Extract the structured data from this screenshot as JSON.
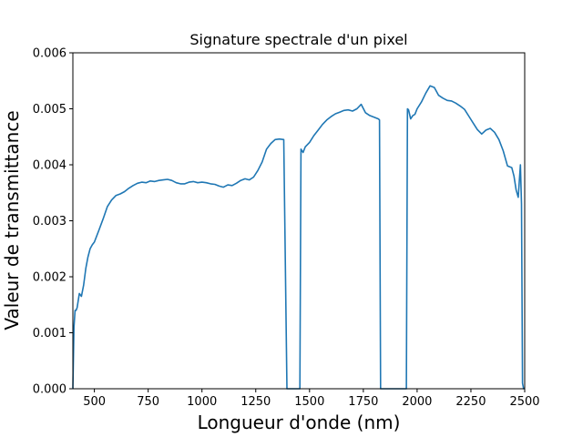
{
  "chart_data": {
    "type": "line",
    "title": "Signature spectrale d'un pixel",
    "xlabel": "Longueur d'onde (nm)",
    "ylabel": "Valeur de transmittance",
    "xlim": [
      400,
      2500
    ],
    "ylim": [
      0,
      0.006
    ],
    "xticks": [
      500,
      750,
      1000,
      1250,
      1500,
      1750,
      2000,
      2250,
      2500
    ],
    "yticks": [
      0,
      0.001,
      0.002,
      0.003,
      0.004,
      0.005,
      0.006
    ],
    "xtick_labels": [
      "500",
      "750",
      "1000",
      "1250",
      "1500",
      "1750",
      "2000",
      "2250",
      "2500"
    ],
    "ytick_labels": [
      "0.000",
      "0.001",
      "0.002",
      "0.003",
      "0.004",
      "0.005",
      "0.006"
    ],
    "grid": false,
    "line_color": "#1f77b4",
    "series": [
      {
        "x": [
          400,
          405,
          410,
          415,
          420,
          430,
          440,
          450,
          460,
          470,
          480,
          490,
          500,
          520,
          540,
          560,
          580,
          600,
          620,
          640,
          660,
          680,
          700,
          720,
          740,
          760,
          780,
          800,
          820,
          840,
          860,
          880,
          900,
          920,
          940,
          960,
          980,
          1000,
          1020,
          1040,
          1060,
          1080,
          1100,
          1120,
          1140,
          1160,
          1180,
          1200,
          1220,
          1240,
          1260,
          1280,
          1300,
          1320,
          1340,
          1360,
          1380,
          1395,
          1400,
          1455,
          1460,
          1470,
          1480,
          1500,
          1520,
          1540,
          1560,
          1580,
          1600,
          1620,
          1640,
          1660,
          1680,
          1700,
          1720,
          1740,
          1760,
          1780,
          1800,
          1820,
          1825,
          1830,
          1950,
          1955,
          1960,
          1970,
          1980,
          1990,
          2000,
          2020,
          2040,
          2060,
          2080,
          2100,
          2120,
          2140,
          2160,
          2180,
          2200,
          2220,
          2240,
          2260,
          2280,
          2300,
          2320,
          2340,
          2360,
          2380,
          2400,
          2420,
          2440,
          2450,
          2460,
          2470,
          2480,
          2485,
          2490,
          2495,
          2500
        ],
        "y": [
          0,
          0.0011,
          0.0014,
          0.0014,
          0.00145,
          0.0017,
          0.00165,
          0.00185,
          0.00215,
          0.00235,
          0.0025,
          0.00257,
          0.00262,
          0.00282,
          0.00303,
          0.00325,
          0.00337,
          0.00345,
          0.00348,
          0.00352,
          0.00358,
          0.00363,
          0.00367,
          0.00369,
          0.00368,
          0.00371,
          0.0037,
          0.00372,
          0.00373,
          0.00374,
          0.00372,
          0.00368,
          0.00366,
          0.00366,
          0.00369,
          0.0037,
          0.00368,
          0.00369,
          0.00368,
          0.00366,
          0.00365,
          0.00362,
          0.0036,
          0.00364,
          0.00363,
          0.00367,
          0.00372,
          0.00375,
          0.00373,
          0.00378,
          0.0039,
          0.00405,
          0.00428,
          0.00438,
          0.00445,
          0.00446,
          0.00445,
          0.0,
          0.0,
          0.0,
          0.00428,
          0.00422,
          0.00432,
          0.0044,
          0.00452,
          0.00462,
          0.00472,
          0.0048,
          0.00486,
          0.00491,
          0.00494,
          0.00497,
          0.00498,
          0.00496,
          0.005,
          0.00508,
          0.00493,
          0.00488,
          0.00485,
          0.00482,
          0.0048,
          0.0,
          0.0,
          0.005,
          0.00498,
          0.00482,
          0.00488,
          0.0049,
          0.005,
          0.00512,
          0.00528,
          0.00541,
          0.00538,
          0.00524,
          0.00519,
          0.00515,
          0.00514,
          0.0051,
          0.00505,
          0.00499,
          0.00487,
          0.00475,
          0.00463,
          0.00455,
          0.00462,
          0.00465,
          0.00458,
          0.00445,
          0.00425,
          0.00398,
          0.00395,
          0.0038,
          0.00355,
          0.00342,
          0.004,
          0.0033,
          0.0001,
          0.0,
          0.0
        ]
      }
    ]
  }
}
